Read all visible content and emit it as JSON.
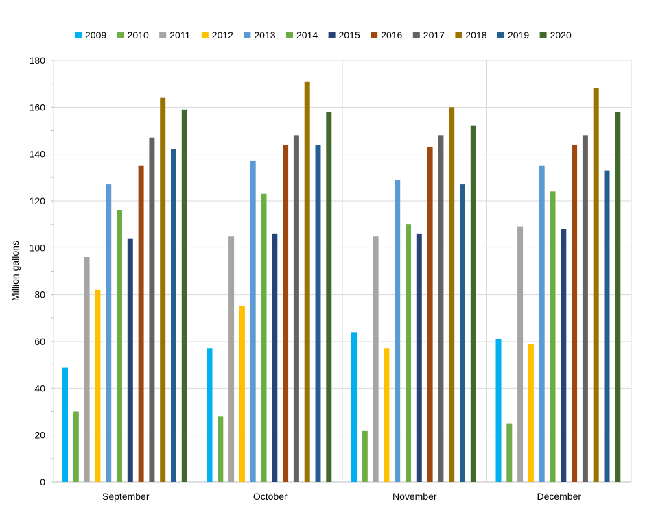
{
  "chart_data": {
    "type": "bar",
    "title": "",
    "xlabel": "",
    "ylabel": "Million gallons",
    "ylim": [
      0,
      180
    ],
    "yticks": [
      0,
      20,
      40,
      60,
      80,
      100,
      120,
      140,
      160,
      180
    ],
    "grid": true,
    "legend_position": "top",
    "categories": [
      "September",
      "October",
      "November",
      "December"
    ],
    "series": [
      {
        "name": "2009",
        "color": "#00b0f0",
        "values": [
          49,
          57,
          64,
          61
        ]
      },
      {
        "name": "2010",
        "color": "#70ad47",
        "values": [
          30,
          28,
          22,
          25
        ]
      },
      {
        "name": "2011",
        "color": "#a5a5a5",
        "values": [
          96,
          105,
          105,
          109
        ]
      },
      {
        "name": "2012",
        "color": "#ffc000",
        "values": [
          82,
          75,
          57,
          59
        ]
      },
      {
        "name": "2013",
        "color": "#5b9bd5",
        "values": [
          127,
          137,
          129,
          135
        ]
      },
      {
        "name": "2014",
        "color": "#6aad45",
        "values": [
          116,
          123,
          110,
          124
        ]
      },
      {
        "name": "2015",
        "color": "#264478",
        "values": [
          104,
          106,
          106,
          108
        ]
      },
      {
        "name": "2016",
        "color": "#9e480e",
        "values": [
          135,
          144,
          143,
          144
        ]
      },
      {
        "name": "2017",
        "color": "#636363",
        "values": [
          147,
          148,
          148,
          148
        ]
      },
      {
        "name": "2018",
        "color": "#997300",
        "values": [
          164,
          171,
          160,
          168
        ]
      },
      {
        "name": "2019",
        "color": "#255e91",
        "values": [
          142,
          144,
          127,
          133
        ]
      },
      {
        "name": "2020",
        "color": "#43682b",
        "values": [
          159,
          158,
          152,
          158
        ]
      }
    ]
  }
}
